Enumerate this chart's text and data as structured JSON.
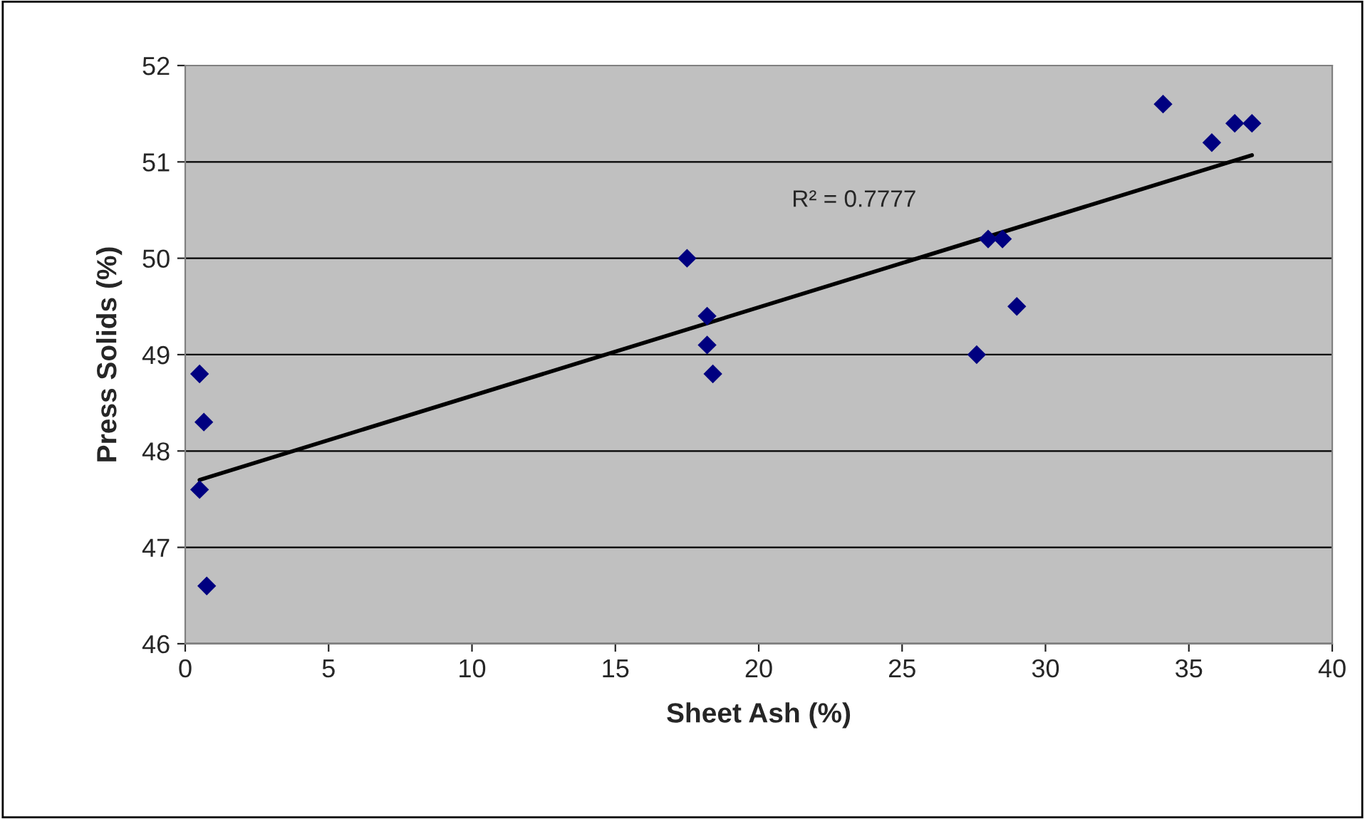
{
  "chart_data": {
    "type": "scatter",
    "xlabel": "Sheet Ash (%)",
    "ylabel": "Press Solids (%)",
    "xlim": [
      0,
      40
    ],
    "xticks": [
      0,
      5,
      10,
      15,
      20,
      25,
      30,
      35,
      40
    ],
    "ylim": [
      46,
      52
    ],
    "yticks": [
      46,
      47,
      48,
      49,
      50,
      51,
      52
    ],
    "grid": "y",
    "series": [
      {
        "marker": "diamond",
        "color": "#000080",
        "x": [
          0.5,
          0.65,
          0.5,
          0.75,
          17.5,
          18.2,
          18.2,
          18.4,
          27.6,
          28.0,
          28.5,
          29.0,
          34.1,
          35.8,
          36.6,
          37.2
        ],
        "values": [
          48.8,
          48.3,
          47.6,
          46.6,
          50.0,
          49.4,
          49.1,
          48.8,
          49.0,
          50.2,
          50.2,
          49.5,
          51.6,
          51.2,
          51.4,
          51.4
        ]
      },
      {
        "type": "line",
        "color": "#000000",
        "x": [
          0.5,
          37.2
        ],
        "values": [
          47.7,
          51.07
        ]
      }
    ],
    "annotations": [
      "R² = 0.7777"
    ]
  }
}
